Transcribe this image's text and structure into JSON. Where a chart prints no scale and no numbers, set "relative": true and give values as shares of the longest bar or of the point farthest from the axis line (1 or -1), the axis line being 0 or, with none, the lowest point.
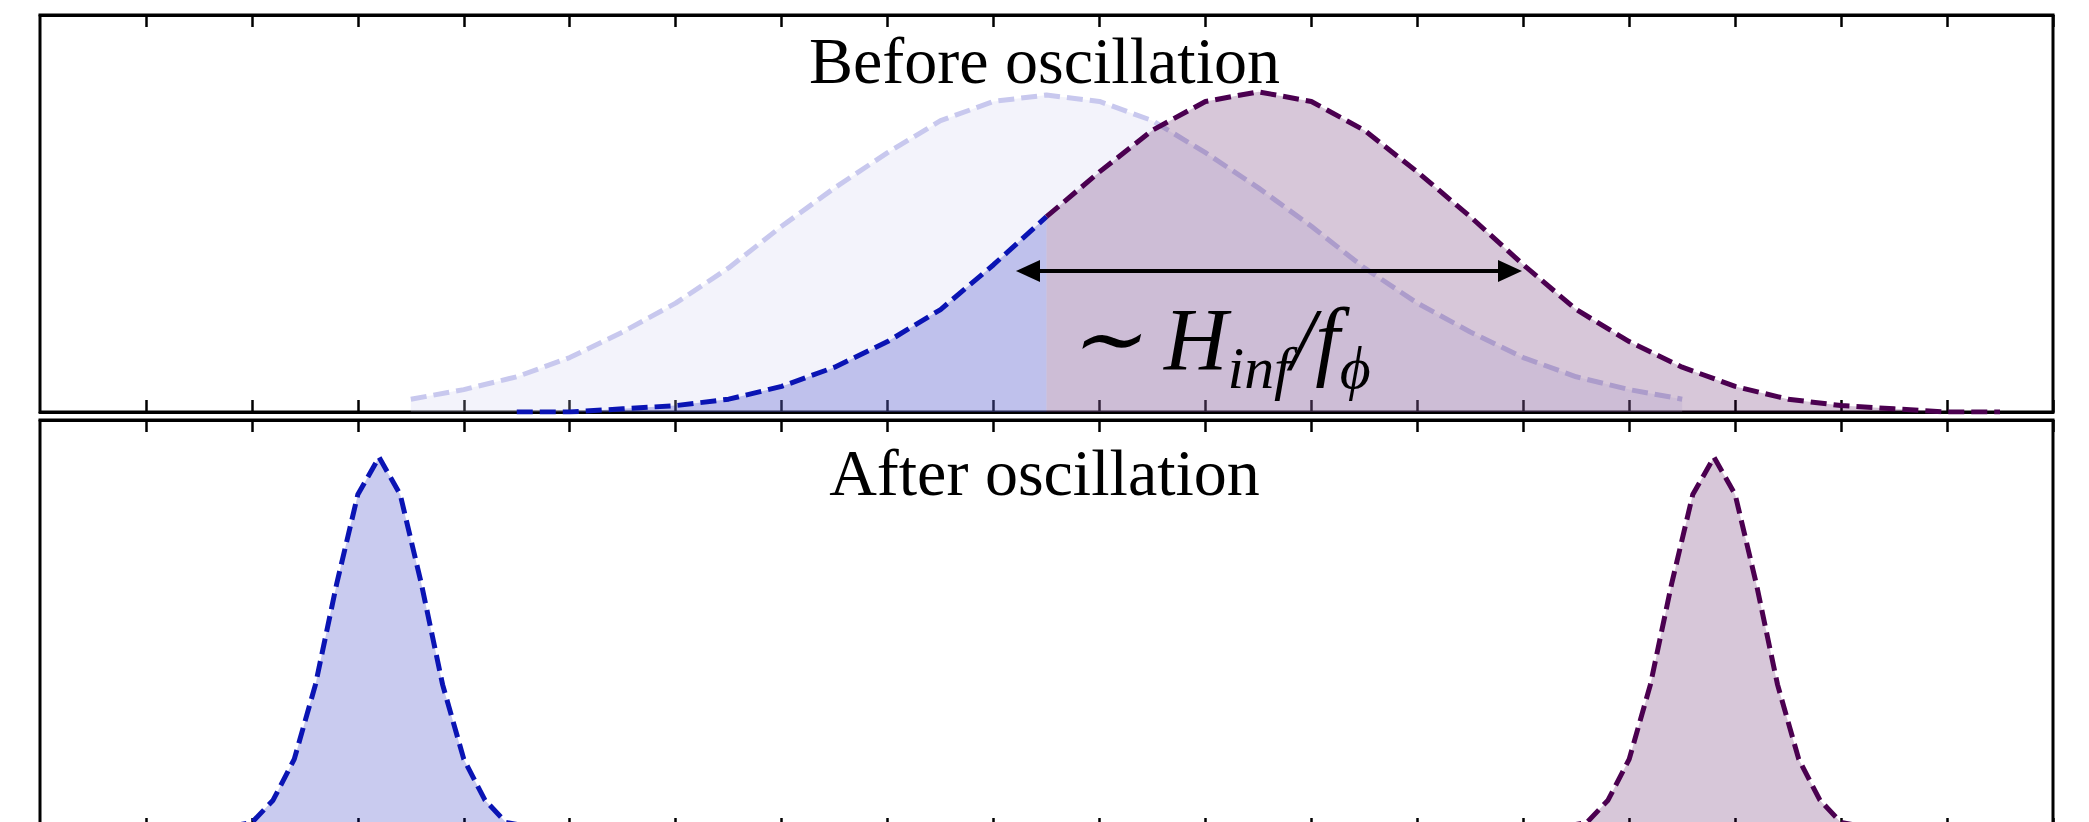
{
  "chart_data": [
    {
      "type": "area",
      "title": "Before oscillation",
      "relative": true,
      "line_style": "dashed",
      "categories": [
        null,
        null,
        null,
        null,
        null,
        null,
        null,
        null,
        null,
        null,
        null,
        null,
        null,
        null,
        null,
        null,
        null,
        null,
        null,
        null,
        null,
        null,
        null,
        null,
        null,
        null,
        null,
        null,
        null,
        null,
        null,
        null,
        null,
        null,
        null,
        null,
        null,
        null,
        null
      ],
      "series": [
        {
          "color": "#c8c8ee",
          "values": [
            null,
            null,
            null,
            null,
            null,
            null,
            null,
            0.04,
            0.07,
            0.11,
            0.17,
            0.25,
            0.34,
            0.45,
            0.58,
            0.7,
            0.81,
            0.91,
            0.97,
            0.99,
            0.97,
            0.91,
            0.81,
            0.7,
            0.58,
            0.45,
            0.34,
            0.25,
            0.17,
            0.11,
            0.07,
            0.04,
            null,
            null,
            null,
            null,
            null,
            null,
            null
          ]
        },
        {
          "color": "#0a14b4",
          "values": [
            null,
            null,
            null,
            null,
            null,
            null,
            null,
            null,
            null,
            0,
            0,
            0.01,
            0.02,
            0.04,
            0.08,
            0.14,
            0.22,
            0.32,
            0.46,
            0.61,
            null,
            null,
            null,
            null,
            null,
            null,
            null,
            null,
            null,
            null,
            null,
            null,
            null,
            null,
            null,
            null,
            null,
            null,
            null
          ]
        },
        {
          "color": "#4b0050",
          "values": [
            null,
            null,
            null,
            null,
            null,
            null,
            null,
            null,
            null,
            null,
            null,
            null,
            null,
            null,
            null,
            null,
            null,
            null,
            null,
            0.61,
            0.75,
            0.88,
            0.97,
            1,
            0.97,
            0.88,
            0.75,
            0.61,
            0.46,
            0.32,
            0.22,
            0.14,
            0.08,
            0.04,
            0.02,
            0.01,
            0,
            0,
            null
          ]
        }
      ],
      "annotations": [
        "∼ H$_{inf}$/f$_{ϕ}$"
      ]
    },
    {
      "type": "area",
      "title": "After oscillation",
      "relative": true,
      "line_style": "dashed",
      "categories": [
        null,
        null,
        null,
        null,
        null,
        null,
        null,
        null,
        null,
        null,
        null,
        null,
        null,
        null,
        null,
        null,
        null,
        null,
        null,
        null,
        null,
        null,
        null,
        null,
        null,
        null,
        null,
        null,
        null,
        null,
        null,
        null,
        null,
        null,
        null,
        null,
        null,
        null,
        null,
        null,
        null,
        null,
        null,
        null,
        null,
        null,
        null,
        null,
        null,
        null,
        null,
        null,
        null,
        null,
        null,
        null,
        null,
        null,
        null,
        null,
        null,
        null,
        null,
        null,
        null,
        null,
        null,
        null,
        null,
        null,
        null,
        null,
        null,
        null,
        null,
        null,
        null,
        null,
        null,
        null,
        null,
        null,
        null,
        null,
        null,
        null,
        null,
        null,
        null,
        null,
        null,
        null,
        null,
        null,
        null,
        null
      ],
      "series": [
        {
          "color": "#0a14b4",
          "values": [
            null,
            null,
            null,
            null,
            null,
            null,
            null,
            null,
            null,
            0.01,
            0.02,
            0.08,
            0.19,
            0.39,
            0.66,
            0.9,
            1,
            0.9,
            0.66,
            0.39,
            0.19,
            0.08,
            0.02,
            0.01,
            null,
            null,
            null,
            null,
            null,
            null,
            null,
            null,
            null,
            null,
            null,
            null,
            null,
            null,
            null,
            null,
            null,
            null,
            null,
            null,
            null,
            null,
            null,
            null,
            null,
            null,
            null,
            null,
            null,
            null,
            null,
            null,
            null,
            null,
            null,
            null,
            null,
            null,
            null,
            null,
            null,
            null,
            null,
            null,
            null,
            null,
            null,
            null,
            null,
            null,
            null,
            null,
            null,
            null,
            null,
            null,
            null,
            null,
            null,
            null,
            null,
            null,
            null,
            null,
            null,
            null,
            null,
            null,
            null,
            null,
            null,
            null
          ]
        },
        {
          "color": "#4b0050",
          "values": [
            null,
            null,
            null,
            null,
            null,
            null,
            null,
            null,
            null,
            null,
            null,
            null,
            null,
            null,
            null,
            null,
            null,
            null,
            null,
            null,
            null,
            null,
            null,
            null,
            null,
            null,
            null,
            null,
            null,
            null,
            null,
            null,
            null,
            null,
            null,
            null,
            null,
            null,
            null,
            null,
            null,
            null,
            null,
            null,
            null,
            null,
            null,
            null,
            null,
            null,
            null,
            null,
            null,
            null,
            null,
            null,
            null,
            null,
            null,
            null,
            null,
            null,
            null,
            null,
            null,
            null,
            null,
            null,
            null,
            null,
            null,
            null,
            0.01,
            0.02,
            0.08,
            0.19,
            0.39,
            0.66,
            0.9,
            1,
            0.9,
            0.66,
            0.39,
            0.19,
            0.08,
            0.02,
            0.01,
            null,
            null,
            null,
            null,
            null,
            null,
            null,
            null,
            null
          ]
        }
      ]
    }
  ]
}
